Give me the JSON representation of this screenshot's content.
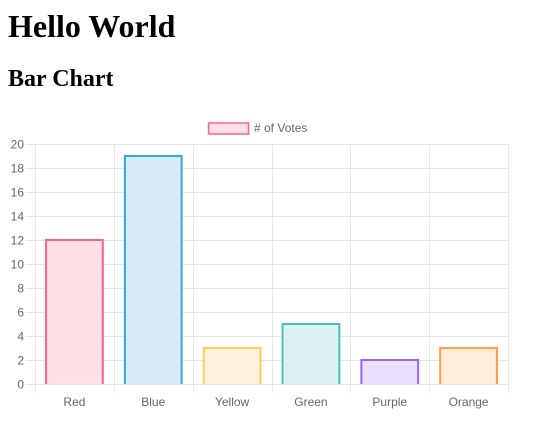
{
  "page": {
    "heading": "Hello World",
    "subheading": "Bar Chart"
  },
  "chart_data": {
    "type": "bar",
    "title": "",
    "xlabel": "",
    "ylabel": "",
    "categories": [
      "Red",
      "Blue",
      "Yellow",
      "Green",
      "Purple",
      "Orange"
    ],
    "series": [
      {
        "name": "# of Votes",
        "values": [
          12,
          19,
          3,
          5,
          2,
          3
        ]
      }
    ],
    "ylim": [
      0,
      20
    ],
    "y_ticks": [
      "0",
      "2",
      "4",
      "6",
      "8",
      "10",
      "12",
      "14",
      "16",
      "18",
      "20"
    ],
    "grid": true,
    "legend_position": "top",
    "colors": {
      "border": [
        "#ff6384",
        "#36a2eb",
        "#ffce56",
        "#4bc0c0",
        "#9966ff",
        "#ff9f40"
      ],
      "fill": [
        "#ffe0e6",
        "#d7ecfb",
        "#fff5dd",
        "#dbf2f2",
        "#ebe0ff",
        "#ffecd9"
      ],
      "legend_border": "#ff6384",
      "legend_fill": "#ffe0e6",
      "grid": "#e6e6e6",
      "tick_text": "#666666"
    }
  }
}
